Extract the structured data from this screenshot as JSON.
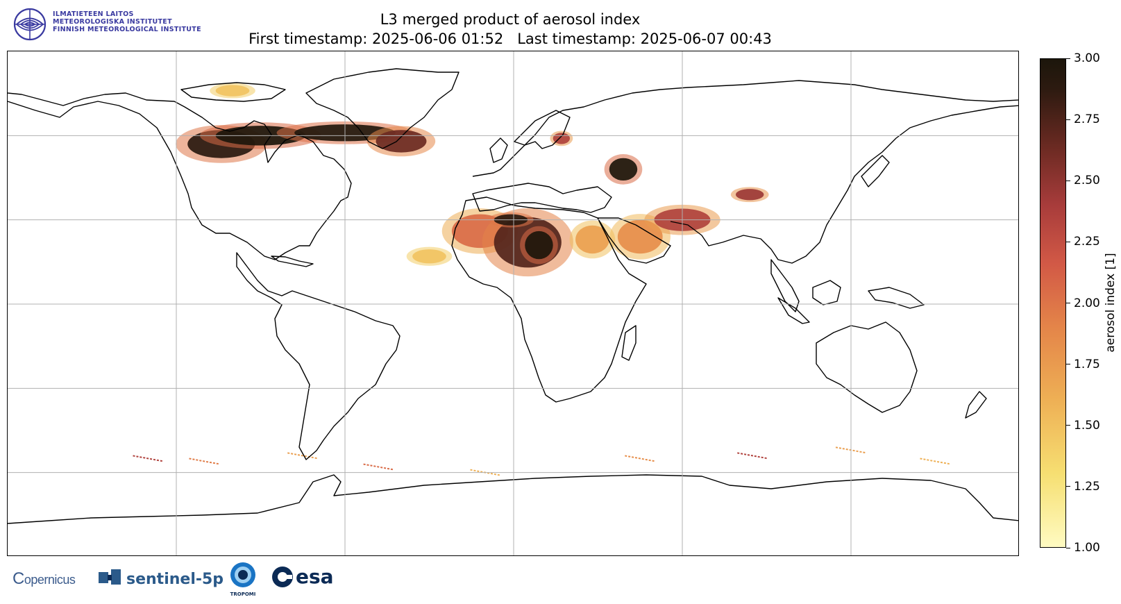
{
  "header": {
    "logo_line1": "ILMATIETEEN LAITOS",
    "logo_line2": "METEOROLOGISKA INSTITUTET",
    "logo_line3": "FINNISH METEOROLOGICAL INSTITUTE",
    "title_line1": "L3 merged product of aerosol index",
    "title_line2": "First timestamp: 2025-06-06 01:52   Last timestamp: 2025-06-07 00:43"
  },
  "map": {
    "projection": "equirectangular",
    "extent": {
      "lon": [
        -180,
        180
      ],
      "lat": [
        -90,
        90
      ]
    },
    "gridlines_lon": [
      -120,
      -60,
      0,
      60,
      120
    ],
    "gridlines_lat": [
      -60,
      -30,
      0,
      30,
      60
    ],
    "grid": true,
    "coastline_color": "#000000",
    "aerosol_regions": [
      {
        "name": "Canada-smoke-west",
        "lon": -104,
        "lat": 57,
        "rx": 12,
        "ry": 5,
        "level": 2.8
      },
      {
        "name": "Canada-smoke-central",
        "lon": -90,
        "lat": 60,
        "rx": 16,
        "ry": 3.5,
        "level": 3.0
      },
      {
        "name": "Greenland-smoke-band",
        "lon": -60,
        "lat": 61,
        "rx": 18,
        "ry": 3,
        "level": 2.9
      },
      {
        "name": "Atlantic-smoke",
        "lon": -40,
        "lat": 58,
        "rx": 9,
        "ry": 4,
        "level": 2.5
      },
      {
        "name": "Arctic-archipelago",
        "lon": -100,
        "lat": 76,
        "rx": 6,
        "ry": 2,
        "level": 1.4
      },
      {
        "name": "Sahara-west",
        "lon": -12,
        "lat": 26,
        "rx": 10,
        "ry": 6,
        "level": 1.9
      },
      {
        "name": "Sahara-central",
        "lon": 5,
        "lat": 22,
        "rx": 12,
        "ry": 9,
        "level": 2.6
      },
      {
        "name": "Sahara-core",
        "lon": 9,
        "lat": 21,
        "rx": 5,
        "ry": 5,
        "level": 3.0
      },
      {
        "name": "Sahara-north",
        "lon": -1,
        "lat": 30,
        "rx": 6,
        "ry": 2,
        "level": 2.8
      },
      {
        "name": "Atlantic-dust",
        "lon": -30,
        "lat": 17,
        "rx": 6,
        "ry": 2.5,
        "level": 1.4
      },
      {
        "name": "Egypt-dust",
        "lon": 28,
        "lat": 23,
        "rx": 6,
        "ry": 5,
        "level": 1.6
      },
      {
        "name": "Arabia-dust",
        "lon": 45,
        "lat": 24,
        "rx": 8,
        "ry": 6,
        "level": 1.7
      },
      {
        "name": "Iran-dust",
        "lon": 60,
        "lat": 30,
        "rx": 10,
        "ry": 4,
        "level": 2.2
      },
      {
        "name": "Black-sea-plume",
        "lon": 39,
        "lat": 48,
        "rx": 5,
        "ry": 4,
        "level": 3.0
      },
      {
        "name": "Taklamakan",
        "lon": 84,
        "lat": 39,
        "rx": 5,
        "ry": 2,
        "level": 2.3
      },
      {
        "name": "Baltic",
        "lon": 17,
        "lat": 59,
        "rx": 3,
        "ry": 2,
        "level": 2.2
      }
    ],
    "southern_streaks": [
      {
        "lon": -130,
        "lat": -55,
        "level": 2.2
      },
      {
        "lon": -110,
        "lat": -56,
        "level": 1.8
      },
      {
        "lon": -75,
        "lat": -54,
        "level": 1.6
      },
      {
        "lon": -48,
        "lat": -58,
        "level": 1.9
      },
      {
        "lon": -10,
        "lat": -60,
        "level": 1.5
      },
      {
        "lon": 45,
        "lat": -55,
        "level": 1.7
      },
      {
        "lon": 85,
        "lat": -54,
        "level": 2.2
      },
      {
        "lon": 120,
        "lat": -52,
        "level": 1.6
      },
      {
        "lon": 150,
        "lat": -56,
        "level": 1.5
      }
    ]
  },
  "colorbar": {
    "label": "aerosol index [1]",
    "min": 1.0,
    "max": 3.0,
    "ticks": [
      "1.00",
      "1.25",
      "1.50",
      "1.75",
      "2.00",
      "2.25",
      "2.50",
      "2.75",
      "3.00"
    ],
    "colors": [
      "#fffbc2",
      "#f6df72",
      "#eeb055",
      "#e48549",
      "#d25946",
      "#a83c3b",
      "#6b2a22",
      "#2c1a10",
      "#1c160b"
    ]
  },
  "footer": {
    "copernicus": "opernicus",
    "copernicus_mark": "C",
    "sentinel": "sentinel-5p",
    "tropomi": "TROPOMI",
    "esa": "esa"
  }
}
